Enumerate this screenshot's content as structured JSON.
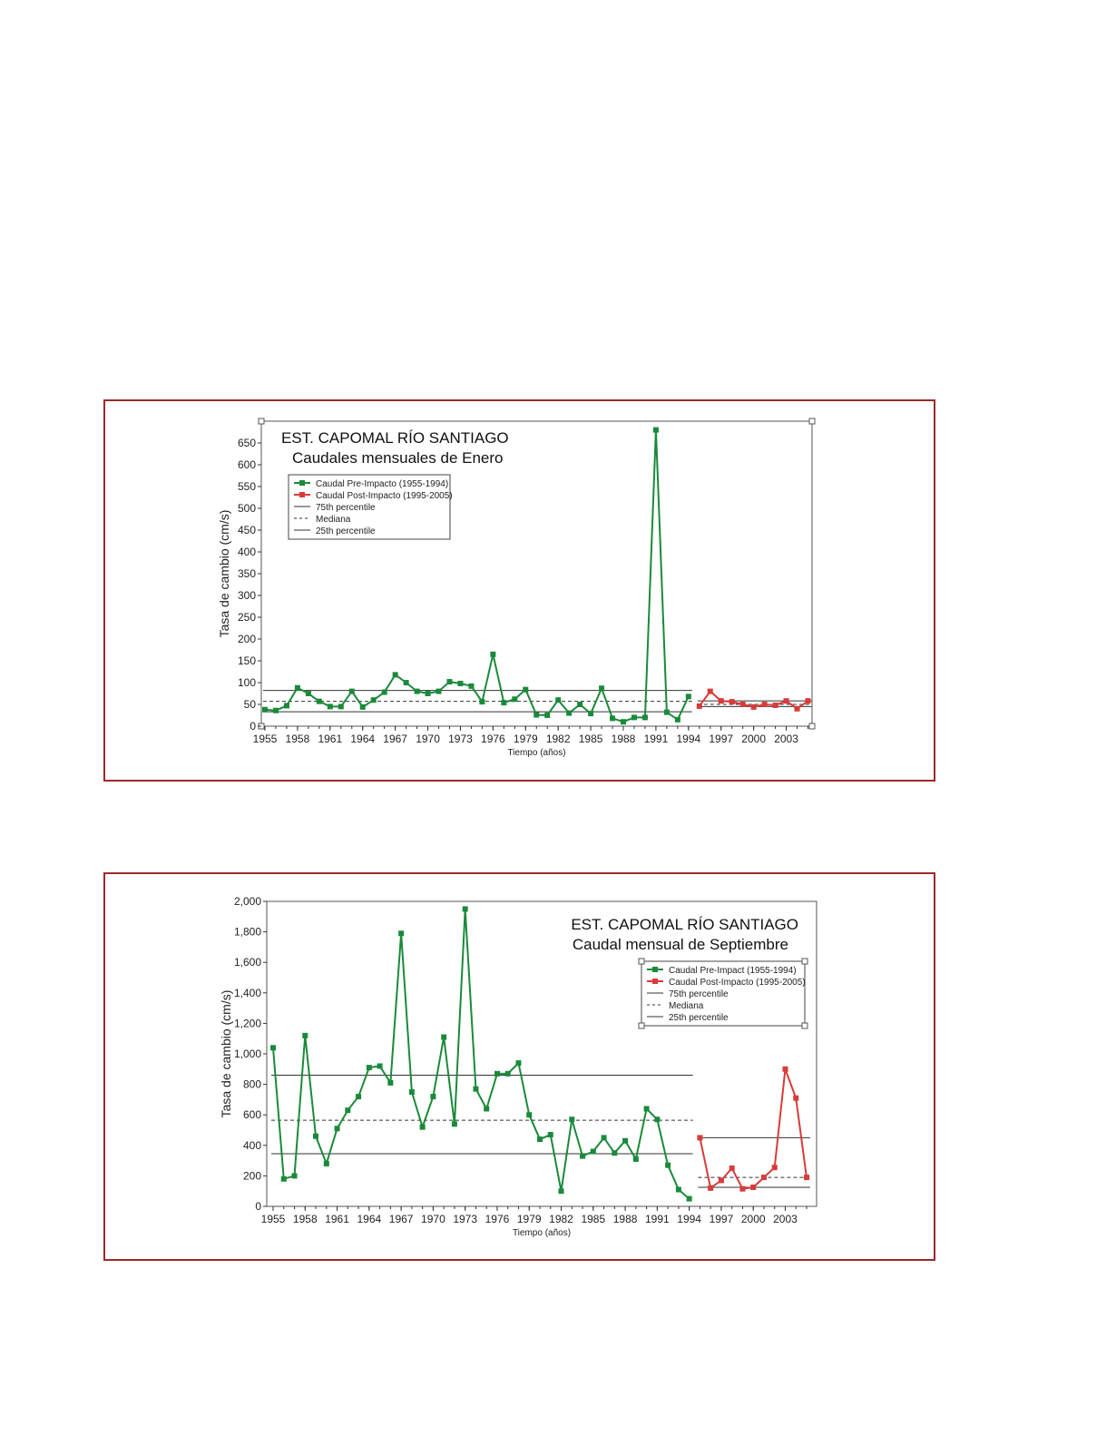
{
  "charts": [
    {
      "title": "EST. CAPOMAL RÍO SANTIAGO",
      "subtitle": "Caudales mensuales de Enero",
      "xlabel": "Tiempo (años)",
      "ylabel": "Tasa de cambio (cm/s)",
      "legend_position": "top-left",
      "legend": [
        {
          "label": "Caudal Pre-Impacto (1955-1994)",
          "style": "green-marker"
        },
        {
          "label": "Caudal Post-Impacto (1995-2005)",
          "style": "red-marker"
        },
        {
          "label": "75th percentile",
          "style": "solid"
        },
        {
          "label": "Mediana",
          "style": "dashed"
        },
        {
          "label": "25th percentile",
          "style": "solid"
        }
      ]
    },
    {
      "title": "EST. CAPOMAL RÍO SANTIAGO",
      "subtitle": "Caudal mensual de Septiembre",
      "xlabel": "Tiempo (años)",
      "ylabel": "Tasa de cambio (cm/s)",
      "legend_position": "top-right",
      "legend": [
        {
          "label": "Caudal Pre-Impact (1955-1994)",
          "style": "green-marker"
        },
        {
          "label": "Caudal Post-Impacto (1995-2005)",
          "style": "red-marker"
        },
        {
          "label": "75th percentile",
          "style": "solid"
        },
        {
          "label": "Mediana",
          "style": "dashed"
        },
        {
          "label": "25th percentile",
          "style": "solid"
        }
      ]
    }
  ],
  "chart_data": [
    {
      "type": "line",
      "title": "EST. CAPOMAL RÍO SANTIAGO",
      "subtitle": "Caudales mensuales de Enero",
      "xlabel": "Tiempo (años)",
      "ylabel": "Tasa de cambio (cm/s)",
      "xlim": [
        1955,
        2005
      ],
      "ylim": [
        0,
        700
      ],
      "x_ticks": [
        1955,
        1958,
        1961,
        1964,
        1967,
        1970,
        1973,
        1976,
        1979,
        1982,
        1985,
        1988,
        1991,
        1994,
        1997,
        2000,
        2003
      ],
      "y_ticks": [
        0,
        50,
        100,
        150,
        200,
        250,
        300,
        350,
        400,
        450,
        500,
        550,
        600,
        650
      ],
      "y_tick_labels": [
        "0",
        "50",
        "100",
        "150",
        "200",
        "250",
        "300",
        "350",
        "400",
        "450",
        "500",
        "550",
        "600",
        "650"
      ],
      "series": [
        {
          "name": "Caudal Pre-Impacto (1955-1994)",
          "color": "#1a8a3a",
          "x": [
            1955,
            1956,
            1957,
            1958,
            1959,
            1960,
            1961,
            1962,
            1963,
            1964,
            1965,
            1966,
            1967,
            1968,
            1969,
            1970,
            1971,
            1972,
            1973,
            1974,
            1975,
            1976,
            1977,
            1978,
            1979,
            1980,
            1981,
            1982,
            1983,
            1984,
            1985,
            1986,
            1987,
            1988,
            1989,
            1990,
            1991,
            1992,
            1993,
            1994
          ],
          "values": [
            38,
            36,
            47,
            88,
            75,
            57,
            45,
            45,
            80,
            44,
            60,
            78,
            118,
            100,
            80,
            75,
            80,
            102,
            98,
            92,
            56,
            165,
            54,
            62,
            84,
            26,
            25,
            60,
            30,
            50,
            29,
            87,
            18,
            10,
            20,
            20,
            680,
            32,
            15,
            68
          ]
        },
        {
          "name": "Caudal Post-Impacto (1995-2005)",
          "color": "#d93a3a",
          "x": [
            1995,
            1996,
            1997,
            1998,
            1999,
            2000,
            2001,
            2002,
            2003,
            2004,
            2005
          ],
          "values": [
            46,
            80,
            58,
            56,
            50,
            44,
            50,
            48,
            58,
            40,
            58
          ]
        }
      ],
      "reference_lines": [
        {
          "name": "75th percentile",
          "style": "solid",
          "x_range": [
            1955,
            1994
          ],
          "value": 82
        },
        {
          "name": "Mediana",
          "style": "dashed",
          "x_range": [
            1955,
            1994
          ],
          "value": 57
        },
        {
          "name": "25th percentile",
          "style": "solid",
          "x_range": [
            1955,
            1994
          ],
          "value": 33
        },
        {
          "name": "75th percentile",
          "style": "solid",
          "x_range": [
            1995,
            2005
          ],
          "value": 58
        },
        {
          "name": "Mediana",
          "style": "dashed",
          "x_range": [
            1995,
            2005
          ],
          "value": 50
        },
        {
          "name": "25th percentile",
          "style": "solid",
          "x_range": [
            1995,
            2005
          ],
          "value": 45
        }
      ],
      "grid": false,
      "legend_position": "top-left"
    },
    {
      "type": "line",
      "title": "EST. CAPOMAL RÍO SANTIAGO",
      "subtitle": "Caudal mensual de Septiembre",
      "xlabel": "Tiempo (años)",
      "ylabel": "Tasa de cambio (cm/s)",
      "xlim": [
        1955,
        2005
      ],
      "ylim": [
        0,
        2000
      ],
      "x_ticks": [
        1955,
        1958,
        1961,
        1964,
        1967,
        1970,
        1973,
        1976,
        1979,
        1982,
        1985,
        1988,
        1991,
        1994,
        1997,
        2000,
        2003
      ],
      "y_ticks": [
        0,
        200,
        400,
        600,
        800,
        1000,
        1200,
        1400,
        1600,
        1800,
        2000
      ],
      "y_tick_labels": [
        "0",
        "200",
        "400",
        "600",
        "800",
        "1,000",
        "1,200",
        "1,400",
        "1,600",
        "1,800",
        "2,000"
      ],
      "series": [
        {
          "name": "Caudal Pre-Impact (1955-1994)",
          "color": "#1a8a3a",
          "x": [
            1955,
            1956,
            1957,
            1958,
            1959,
            1960,
            1961,
            1962,
            1963,
            1964,
            1965,
            1966,
            1967,
            1968,
            1969,
            1970,
            1971,
            1972,
            1973,
            1974,
            1975,
            1976,
            1977,
            1978,
            1979,
            1980,
            1981,
            1982,
            1983,
            1984,
            1985,
            1986,
            1987,
            1988,
            1989,
            1990,
            1991,
            1992,
            1993,
            1994
          ],
          "values": [
            1040,
            180,
            200,
            1120,
            460,
            280,
            510,
            630,
            720,
            910,
            920,
            810,
            1790,
            750,
            520,
            720,
            1110,
            540,
            1950,
            770,
            640,
            870,
            870,
            940,
            600,
            440,
            470,
            100,
            570,
            330,
            360,
            450,
            350,
            430,
            310,
            640,
            570,
            270,
            110,
            50
          ]
        },
        {
          "name": "Caudal Post-Impacto (1995-2005)",
          "color": "#d93a3a",
          "x": [
            1995,
            1996,
            1997,
            1998,
            1999,
            2000,
            2001,
            2002,
            2003,
            2004,
            2005
          ],
          "values": [
            450,
            120,
            170,
            250,
            115,
            125,
            190,
            255,
            900,
            710,
            190
          ]
        }
      ],
      "reference_lines": [
        {
          "name": "75th percentile",
          "style": "solid",
          "x_range": [
            1955,
            1994
          ],
          "value": 860
        },
        {
          "name": "Mediana",
          "style": "dashed",
          "x_range": [
            1955,
            1994
          ],
          "value": 565
        },
        {
          "name": "25th percentile",
          "style": "solid",
          "x_range": [
            1955,
            1994
          ],
          "value": 345
        },
        {
          "name": "75th percentile",
          "style": "solid",
          "x_range": [
            1995,
            2005
          ],
          "value": 450
        },
        {
          "name": "Mediana",
          "style": "dashed",
          "x_range": [
            1995,
            2005
          ],
          "value": 190
        },
        {
          "name": "25th percentile",
          "style": "solid",
          "x_range": [
            1995,
            2005
          ],
          "value": 125
        }
      ],
      "grid": false,
      "legend_position": "top-right"
    }
  ]
}
